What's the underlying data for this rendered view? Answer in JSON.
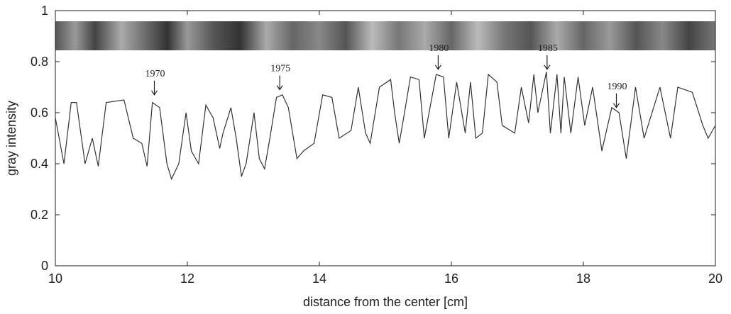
{
  "chart_data": {
    "type": "line",
    "xlabel": "distance from the center [cm]",
    "ylabel": "gray intensity",
    "xlim": [
      10,
      20
    ],
    "ylim": [
      0,
      1
    ],
    "xticks": [
      10,
      12,
      14,
      16,
      18,
      20
    ],
    "yticks": [
      0,
      0.2,
      0.4,
      0.6,
      0.8,
      1
    ],
    "color": "#333333",
    "series": [
      {
        "x": [
          10.0,
          10.13,
          10.24,
          10.32,
          10.45,
          10.56,
          10.65,
          10.77,
          11.04,
          11.18,
          11.31,
          11.39,
          11.47,
          11.58,
          11.69,
          11.76,
          11.87,
          11.98,
          12.06,
          12.17,
          12.28,
          12.39,
          12.49,
          12.54,
          12.66,
          12.74,
          12.82,
          12.89,
          13.01,
          13.09,
          13.17,
          13.25,
          13.35,
          13.44,
          13.53,
          13.66,
          13.76,
          13.92,
          14.05,
          14.19,
          14.3,
          14.48,
          14.59,
          14.7,
          14.77,
          14.91,
          15.08,
          15.14,
          15.21,
          15.29,
          15.38,
          15.51,
          15.59,
          15.77,
          15.88,
          15.96,
          16.08,
          16.21,
          16.29,
          16.37,
          16.47,
          16.56,
          16.69,
          16.77,
          16.96,
          17.06,
          17.17,
          17.25,
          17.31,
          17.44,
          17.5,
          17.6,
          17.66,
          17.71,
          17.81,
          17.92,
          18.02,
          18.14,
          18.28,
          18.43,
          18.54,
          18.65,
          18.79,
          18.92,
          19.16,
          19.32,
          19.43,
          19.65,
          19.81,
          19.89,
          20.0
        ],
        "values": [
          0.58,
          0.4,
          0.64,
          0.64,
          0.4,
          0.5,
          0.39,
          0.64,
          0.65,
          0.5,
          0.48,
          0.39,
          0.64,
          0.62,
          0.4,
          0.34,
          0.4,
          0.6,
          0.45,
          0.4,
          0.63,
          0.58,
          0.46,
          0.52,
          0.62,
          0.5,
          0.35,
          0.4,
          0.6,
          0.42,
          0.38,
          0.5,
          0.66,
          0.67,
          0.62,
          0.42,
          0.45,
          0.48,
          0.67,
          0.66,
          0.5,
          0.53,
          0.7,
          0.52,
          0.48,
          0.7,
          0.73,
          0.6,
          0.48,
          0.6,
          0.74,
          0.73,
          0.5,
          0.75,
          0.74,
          0.5,
          0.72,
          0.52,
          0.72,
          0.5,
          0.52,
          0.75,
          0.72,
          0.55,
          0.52,
          0.7,
          0.56,
          0.75,
          0.6,
          0.76,
          0.52,
          0.75,
          0.52,
          0.74,
          0.52,
          0.74,
          0.55,
          0.7,
          0.45,
          0.62,
          0.6,
          0.42,
          0.7,
          0.5,
          0.7,
          0.5,
          0.7,
          0.68,
          0.55,
          0.5,
          0.55
        ]
      }
    ],
    "annotations": [
      {
        "text": "1970",
        "x": 11.5,
        "y": 0.67
      },
      {
        "text": "1975",
        "x": 13.4,
        "y": 0.69
      },
      {
        "text": "1980",
        "x": 15.8,
        "y": 0.77
      },
      {
        "text": "1985",
        "x": 17.45,
        "y": 0.77
      },
      {
        "text": "1990",
        "x": 18.5,
        "y": 0.62
      }
    ]
  }
}
